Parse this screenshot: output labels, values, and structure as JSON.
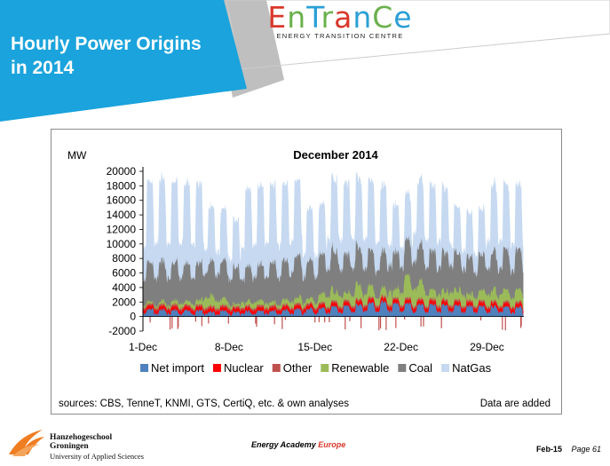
{
  "slide": {
    "title_line1": "Hourly Power Origins",
    "title_line2": "in 2014"
  },
  "logo": {
    "letters": [
      "E",
      "n",
      "T",
      "r",
      "a",
      "n",
      "C",
      "e"
    ],
    "letter_colors": [
      "#d9382b",
      "#6ab04c",
      "#2a9fd6",
      "#6ab04c",
      "#d9382b",
      "#2a9fd6",
      "#6ab04c",
      "#2a9fd6"
    ],
    "subtitle": "ENERGY TRANSITION CENTRE"
  },
  "colors": {
    "banner_blue": "#1aa3dc",
    "banner_gray": "#8a8a8a",
    "net_import": "#4f81bd",
    "nuclear": "#ff0000",
    "other": "#c0504d",
    "renewable": "#9bbb59",
    "coal": "#7f7f7f",
    "natgas": "#c6d9f1"
  },
  "chart_data": {
    "type": "area",
    "title": "December 2014",
    "ylabel": "MW",
    "ylim": [
      -2000,
      20000
    ],
    "yticks": [
      "20000",
      "18000",
      "16000",
      "14000",
      "12000",
      "10000",
      "8000",
      "6000",
      "4000",
      "2000",
      "0",
      "-2000"
    ],
    "xticks": [
      "1-Dec",
      "8-Dec",
      "15-Dec",
      "22-Dec",
      "29-Dec"
    ],
    "x_days": [
      1,
      31
    ],
    "stacked": true,
    "legend_position": "bottom",
    "series": [
      {
        "name": "Net import",
        "color": "#4f81bd",
        "daily_level_mw": [
          700,
          650,
          600,
          600,
          550,
          500,
          600,
          450,
          500,
          550,
          600,
          650,
          700,
          750,
          800,
          900,
          1000,
          1100,
          1300,
          1400,
          1300,
          1200,
          1200,
          1150,
          1100,
          1100,
          1050,
          1000,
          950,
          900,
          900
        ]
      },
      {
        "name": "Nuclear",
        "color": "#ff0000",
        "daily_level_mw": [
          480,
          480,
          480,
          480,
          480,
          480,
          480,
          480,
          480,
          480,
          480,
          480,
          480,
          480,
          480,
          480,
          480,
          480,
          480,
          480,
          480,
          480,
          480,
          480,
          480,
          480,
          480,
          480,
          480,
          480,
          480
        ]
      },
      {
        "name": "Other",
        "color": "#c0504d",
        "daily_level_mw": [
          300,
          300,
          300,
          300,
          300,
          300,
          300,
          300,
          300,
          300,
          300,
          300,
          300,
          300,
          300,
          300,
          300,
          300,
          300,
          300,
          300,
          300,
          300,
          300,
          300,
          300,
          300,
          300,
          300,
          300,
          300
        ]
      },
      {
        "name": "Renewable",
        "color": "#9bbb59",
        "daily_level_mw": [
          300,
          400,
          500,
          600,
          700,
          1200,
          800,
          400,
          600,
          700,
          500,
          600,
          1000,
          800,
          1000,
          1500,
          1100,
          1800,
          1400,
          1300,
          1600,
          2500,
          2000,
          1800,
          1400,
          1500,
          1200,
          1100,
          1400,
          1700,
          1300
        ]
      },
      {
        "name": "Coal",
        "color": "#7f7f7f",
        "daily_level_mw": [
          4600,
          4700,
          4600,
          4500,
          4500,
          4200,
          4500,
          4400,
          4100,
          4300,
          4600,
          4700,
          4900,
          4600,
          4700,
          4900,
          4600,
          4500,
          4300,
          4400,
          4500,
          4300,
          4500,
          4600,
          4700,
          4500,
          4400,
          4300,
          4500,
          4600,
          4700
        ]
      },
      {
        "name": "NatGas",
        "color": "#c6d9f1",
        "daily_level_mw": [
          10500,
          10800,
          10600,
          10600,
          10400,
          7200,
          6800,
          6200,
          10200,
          10300,
          10200,
          10100,
          9900,
          6900,
          6700,
          9400,
          9300,
          9100,
          9200,
          8700,
          6200,
          6100,
          8700,
          8600,
          8500,
          6000,
          5800,
          5900,
          8900,
          8600,
          8500
        ]
      }
    ]
  },
  "sources": "sources: CBS, TenneT, KNMI, GTS, CertiQ, etc. & own analyses",
  "note": "Data are added",
  "footer": {
    "institution_name": "Hanzehogeschool Groningen",
    "institution_sub": "University of Applied Sciences",
    "center_prefix": "Energy Academy",
    "center_suffix": "Europe",
    "date": "Feb-15",
    "page": "Page 61"
  }
}
